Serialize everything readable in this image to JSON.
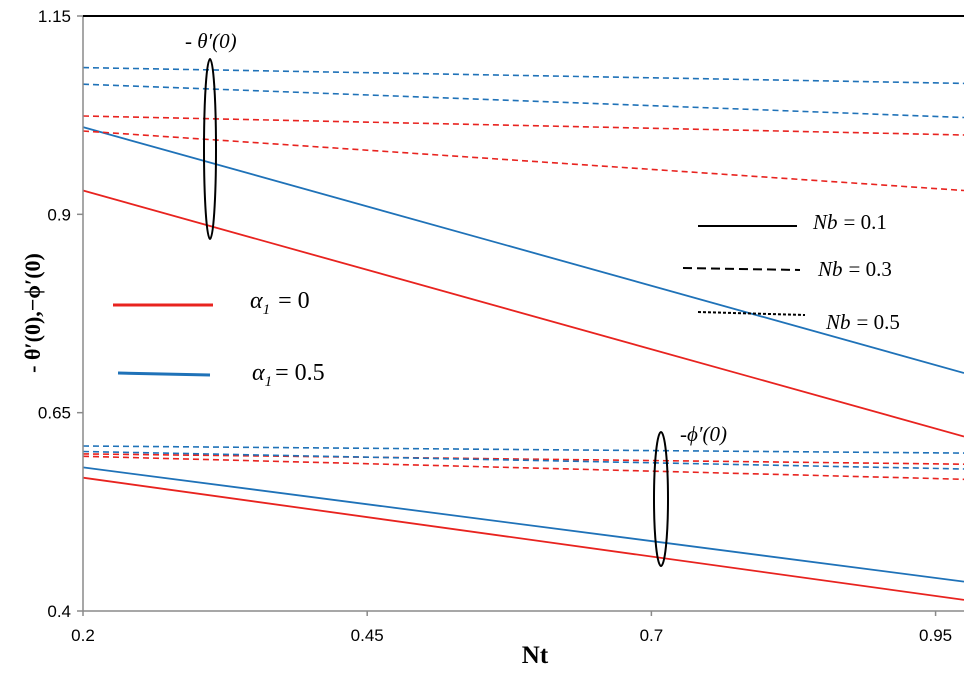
{
  "chart_data": {
    "type": "line",
    "title": "",
    "xlabel": "Nt",
    "ylabel": "- θ′(0),−ϕ′(0)",
    "xlim": [
      0.2,
      0.975
    ],
    "ylim": [
      0.4,
      1.15
    ],
    "x_ticks": [
      "0.2",
      "0.45",
      "0.7",
      "0.95"
    ],
    "y_ticks": [
      "1.15",
      "0.9",
      "0.65",
      "0.4"
    ],
    "x_tick_values": [
      0.2,
      0.45,
      0.7,
      0.95
    ],
    "y_tick_values": [
      1.15,
      0.9,
      0.65,
      0.4
    ],
    "series": [
      {
        "color": "#e8231f",
        "dash": "solid",
        "x": [
          0.2,
          0.975
        ],
        "y": [
          0.93,
          0.62
        ]
      },
      {
        "color": "#1f72b8",
        "dash": "solid",
        "x": [
          0.2,
          0.975
        ],
        "y": [
          1.01,
          0.7
        ]
      },
      {
        "color": "#e8231f",
        "dash": "dashed",
        "x": [
          0.2,
          0.975
        ],
        "y": [
          1.005,
          0.93
        ]
      },
      {
        "color": "#e8231f",
        "dash": "dashed",
        "x": [
          0.2,
          0.975
        ],
        "y": [
          1.024,
          1.0
        ]
      },
      {
        "color": "#1f72b8",
        "dash": "dashed",
        "x": [
          0.2,
          0.975
        ],
        "y": [
          1.064,
          1.022
        ]
      },
      {
        "color": "#1f72b8",
        "dash": "dashed",
        "x": [
          0.2,
          0.975
        ],
        "y": [
          1.085,
          1.065
        ]
      },
      {
        "color": "#e8231f",
        "dash": "solid",
        "x": [
          0.2,
          0.975
        ],
        "y": [
          0.568,
          0.414
        ]
      },
      {
        "color": "#1f72b8",
        "dash": "solid",
        "x": [
          0.2,
          0.975
        ],
        "y": [
          0.581,
          0.437
        ]
      },
      {
        "color": "#e8231f",
        "dash": "dashed",
        "x": [
          0.2,
          0.975
        ],
        "y": [
          0.595,
          0.566
        ]
      },
      {
        "color": "#e8231f",
        "dash": "dashed",
        "x": [
          0.2,
          0.975
        ],
        "y": [
          0.598,
          0.585
        ]
      },
      {
        "color": "#1f72b8",
        "dash": "dashed",
        "x": [
          0.2,
          0.975
        ],
        "y": [
          0.601,
          0.579
        ]
      },
      {
        "color": "#1f72b8",
        "dash": "dashed",
        "x": [
          0.2,
          0.975
        ],
        "y": [
          0.608,
          0.599
        ]
      }
    ],
    "annotations": {
      "theta": "- θ′(0)",
      "phi": "-ϕ′(0)"
    },
    "legend_alpha": [
      {
        "label": "α1 = 0",
        "symbol": "α",
        "sub": "1",
        "value": "= 0",
        "color": "#e8231f"
      },
      {
        "label": "α1 = 0.5",
        "symbol": "α",
        "sub": "1",
        "value": "= 0.5",
        "color": "#1f72b8"
      }
    ],
    "legend_nb": [
      {
        "label": "Nb = 0.1",
        "name": "Nb",
        "value": "= 0.1",
        "style": "solid"
      },
      {
        "label": "Nb = 0.3",
        "name": "Nb",
        "value": "= 0.3",
        "style": "dashed"
      },
      {
        "label": "Nb = 0.5",
        "name": "Nb",
        "value": "= 0.5",
        "style": "dashed"
      }
    ],
    "grid": false
  }
}
